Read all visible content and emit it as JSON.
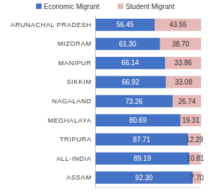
{
  "chart_data": {
    "type": "bar",
    "orientation": "horizontal",
    "stacked": true,
    "data_labels": true,
    "legend": "top",
    "tick_labels": "y",
    "categories": [
      "ARUNACHAL PRADESH",
      "MIZORAM",
      "MANIPUR",
      "SIKKIM",
      "NAGALAND",
      "MEGHALAYA",
      "TRIPURA",
      "ALL-INDIA",
      "ASSAM"
    ],
    "xlim": [
      0,
      100
    ],
    "xticks": [],
    "series": [
      {
        "name": "Economic Migrant",
        "color": "#4472c4",
        "values": [
          56.45,
          61.3,
          66.14,
          66.92,
          73.26,
          80.69,
          87.71,
          89.19,
          92.3
        ],
        "value_labels": [
          "56.45",
          "61.30",
          "66.14",
          "66.92",
          "73.26",
          "80.69",
          "87.71",
          "89.19",
          "92.30"
        ]
      },
      {
        "name": "Student Migrant",
        "color": "#e6b8b7",
        "values": [
          43.55,
          38.7,
          33.86,
          33.08,
          26.74,
          19.31,
          12.29,
          10.81,
          7.7
        ],
        "value_labels": [
          "43.55",
          "38.70",
          "33.86",
          "33.08",
          "26.74",
          "19.31",
          "12.29",
          "10.81",
          "7.70"
        ]
      }
    ]
  }
}
